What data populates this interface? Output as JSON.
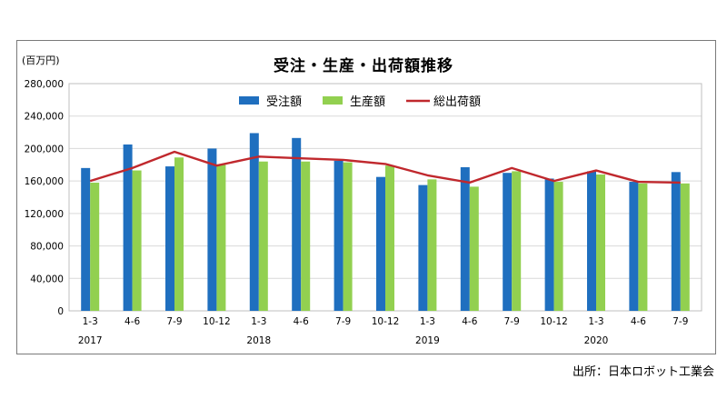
{
  "chart_data": {
    "type": "bar",
    "title": "受注・生産・出荷額推移",
    "unit_label": "(百万円)",
    "source": "出所：日本ロボット工業会",
    "categories": [
      "1-3",
      "4-6",
      "7-9",
      "10-12",
      "1-3",
      "4-6",
      "7-9",
      "10-12",
      "1-3",
      "4-6",
      "7-9",
      "10-12",
      "1-3",
      "4-6",
      "7-9"
    ],
    "years": [
      {
        "label": "2017",
        "index": 0
      },
      {
        "label": "2018",
        "index": 4
      },
      {
        "label": "2019",
        "index": 8
      },
      {
        "label": "2020",
        "index": 12
      }
    ],
    "yticks": [
      "0",
      "40,000",
      "80,000",
      "120,000",
      "160,000",
      "200,000",
      "240,000",
      "280,000"
    ],
    "ylim": [
      0,
      280000
    ],
    "grid": true,
    "legend_position": "top",
    "series": [
      {
        "name": "受注額",
        "kind": "bar",
        "color": "#1f6fbf",
        "values": [
          176000,
          205000,
          178000,
          200000,
          219000,
          213000,
          185000,
          165000,
          155000,
          177000,
          170000,
          163000,
          172000,
          159000,
          171000
        ]
      },
      {
        "name": "生産額",
        "kind": "bar",
        "color": "#92d050",
        "values": [
          158000,
          173000,
          189000,
          180000,
          184000,
          184000,
          183000,
          179000,
          162000,
          153000,
          172000,
          159000,
          168000,
          157000,
          157000
        ]
      },
      {
        "name": "総出荷額",
        "kind": "line",
        "color": "#c0282d",
        "values": [
          160000,
          176000,
          196000,
          179000,
          190000,
          188000,
          186000,
          181000,
          167000,
          158000,
          176000,
          160000,
          173000,
          159000,
          158000
        ]
      }
    ]
  }
}
